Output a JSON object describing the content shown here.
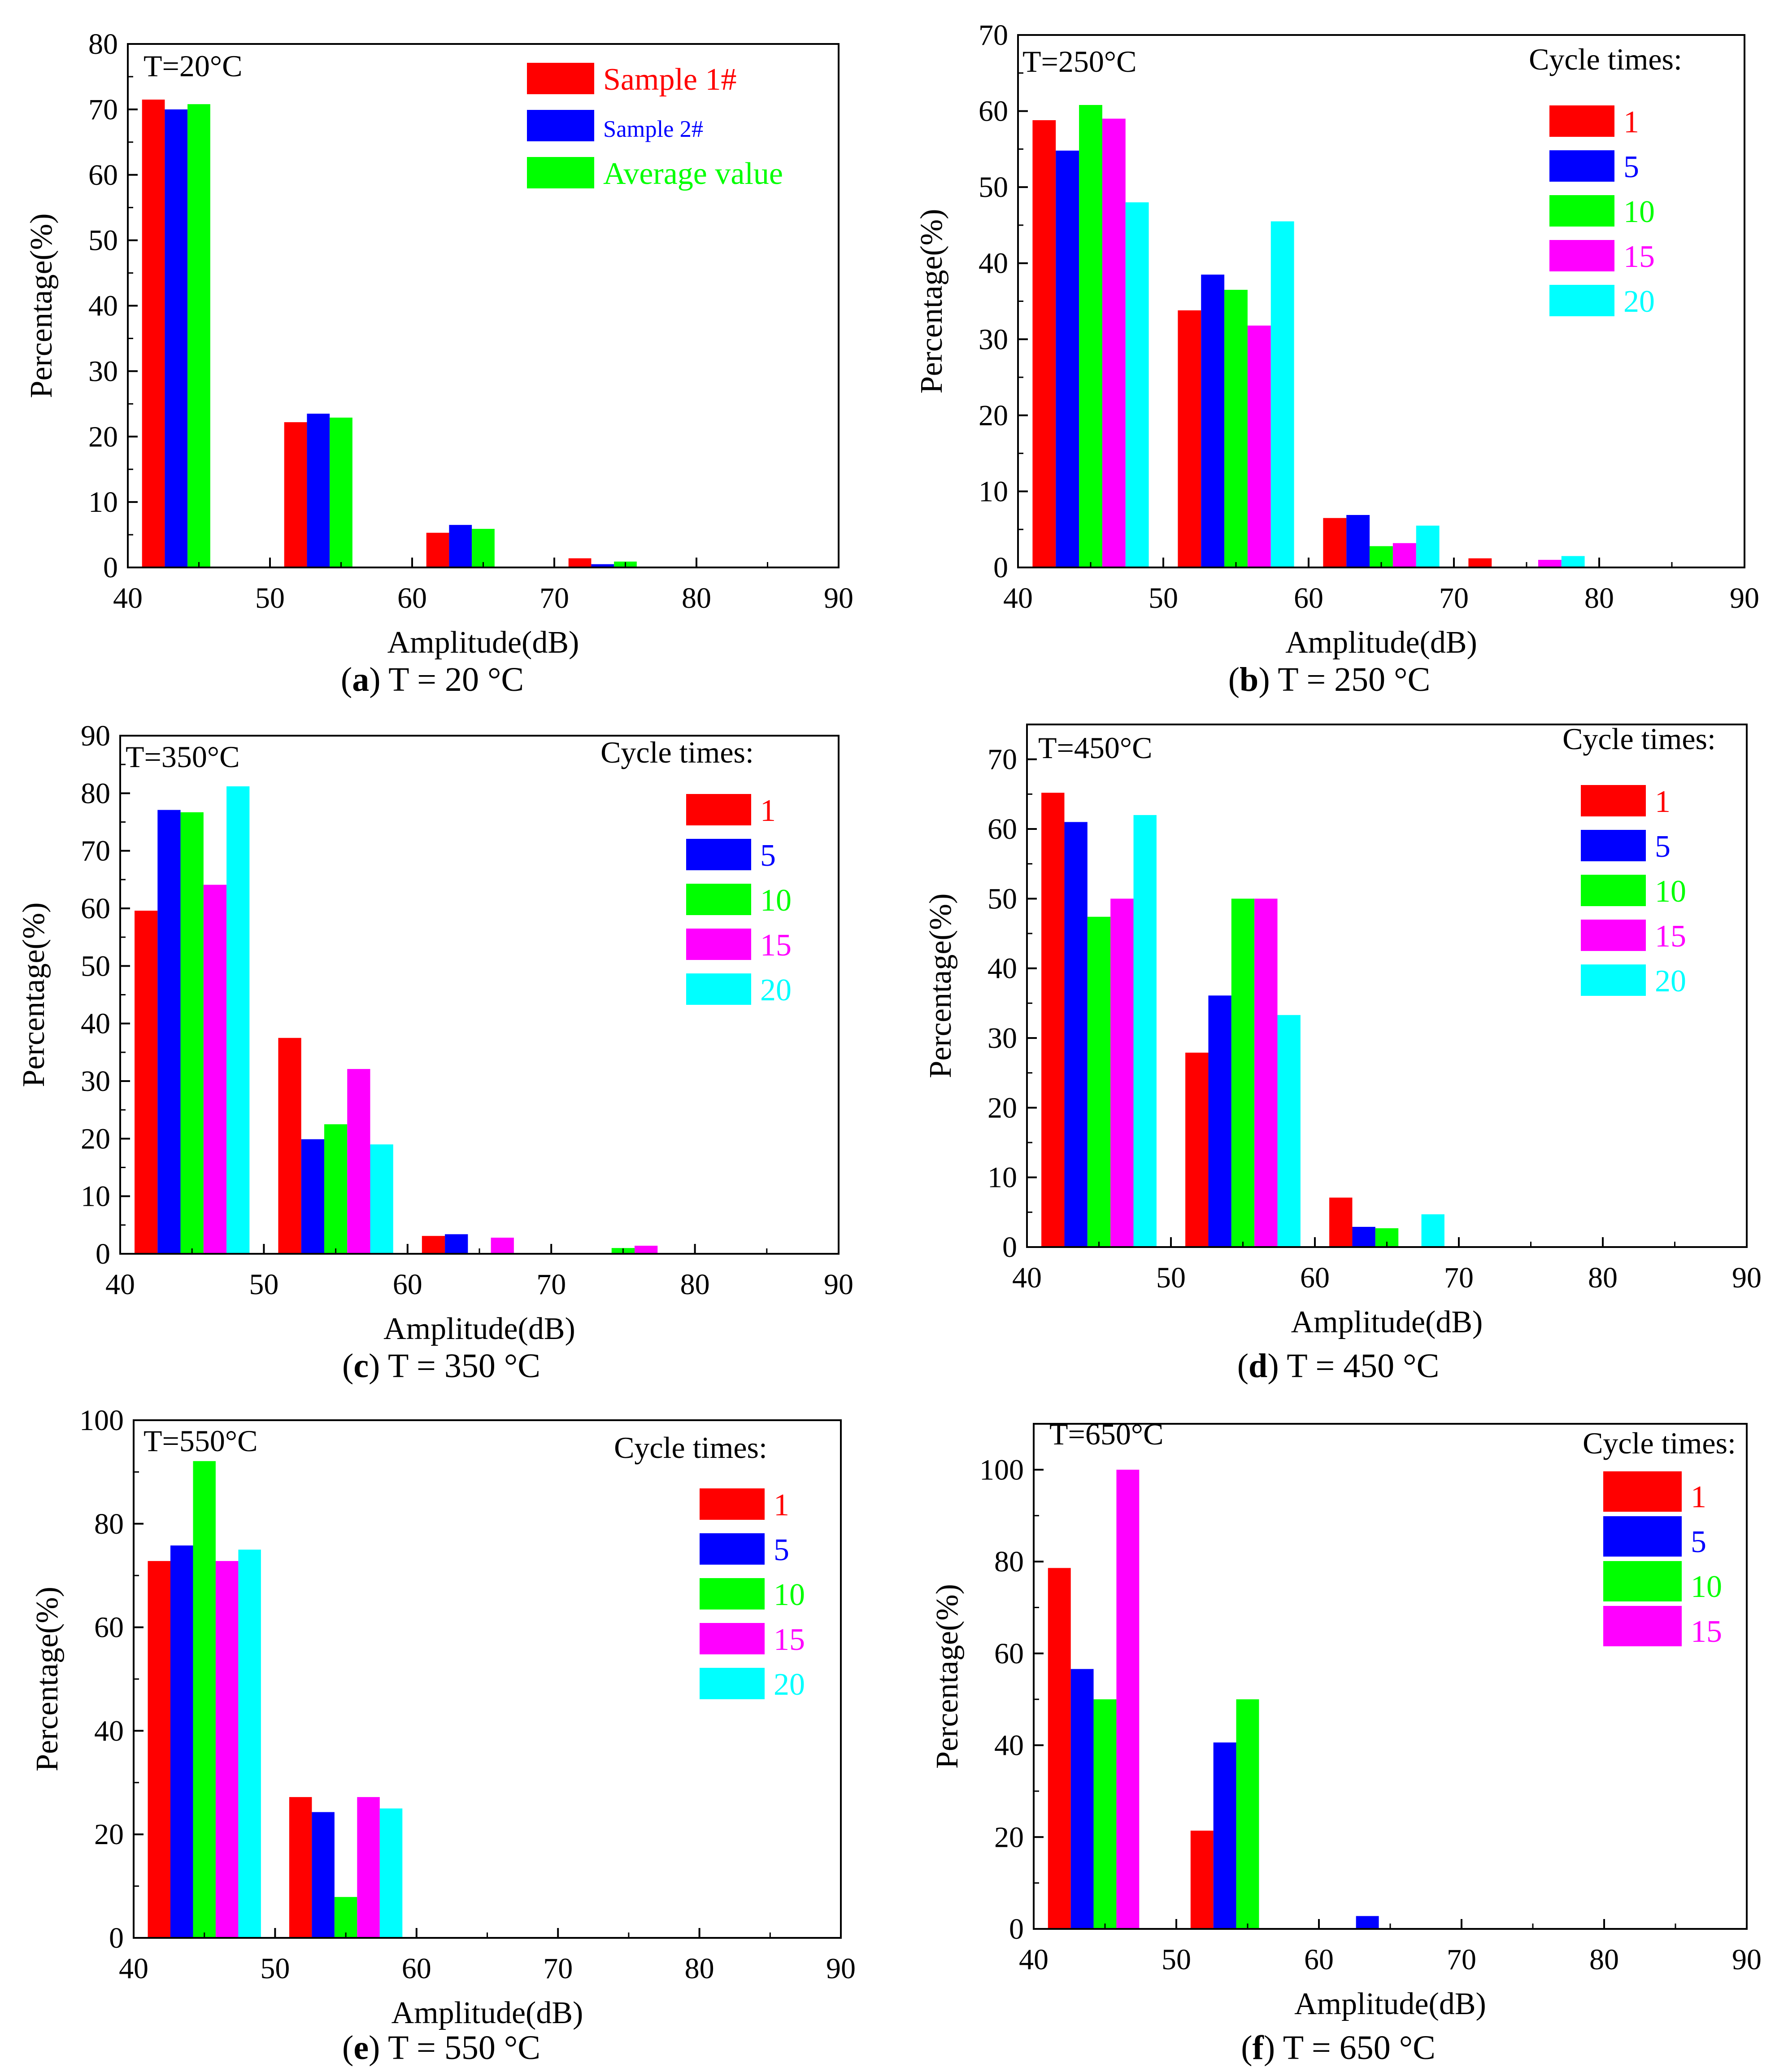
{
  "chart_data": [
    {
      "type": "bar",
      "temperature_label": "T=20°C",
      "caption_letter": "a",
      "caption_text": " T = 20 °C",
      "xlabel": "Amplitude(dB)",
      "ylabel": "Percentage(%)",
      "xlim": [
        40,
        90
      ],
      "ylim": [
        0,
        80
      ],
      "xticks": [
        40,
        50,
        60,
        70,
        80,
        90
      ],
      "yticks": [
        0,
        10,
        20,
        30,
        40,
        50,
        60,
        70,
        80
      ],
      "legend_title": "",
      "group_starts": [
        41,
        51,
        61,
        71
      ],
      "series": [
        {
          "name": "Sample 1#",
          "color": "#ff0000",
          "values": [
            71.5,
            22.2,
            5.3,
            1.4
          ]
        },
        {
          "name": "Sample 2#",
          "color": "#0000ff",
          "values": [
            70.0,
            23.5,
            6.5,
            0.5
          ]
        },
        {
          "name": "Average value",
          "color": "#00ff00",
          "values": [
            70.8,
            22.9,
            5.9,
            0.9
          ]
        }
      ]
    },
    {
      "type": "bar",
      "temperature_label": "T=250°C",
      "caption_letter": "b",
      "caption_text": " T = 250 °C",
      "xlabel": "Amplitude(dB)",
      "ylabel": "Percentage(%)",
      "xlim": [
        40,
        90
      ],
      "ylim": [
        0,
        70
      ],
      "xticks": [
        40,
        50,
        60,
        70,
        80,
        90
      ],
      "yticks": [
        0,
        10,
        20,
        30,
        40,
        50,
        60,
        70
      ],
      "legend_title": "Cycle times:",
      "group_starts": [
        41,
        51,
        61,
        71
      ],
      "series": [
        {
          "name": "1",
          "color": "#ff0000",
          "values": [
            58.8,
            33.8,
            6.5,
            1.2
          ]
        },
        {
          "name": "5",
          "color": "#0000ff",
          "values": [
            54.8,
            38.5,
            6.9,
            0
          ]
        },
        {
          "name": "10",
          "color": "#00ff00",
          "values": [
            60.8,
            36.5,
            2.8,
            0
          ]
        },
        {
          "name": "15",
          "color": "#ff00ff",
          "values": [
            59.0,
            31.8,
            3.2,
            1.0
          ]
        },
        {
          "name": "20",
          "color": "#00ffff",
          "values": [
            48.0,
            45.5,
            5.5,
            1.5
          ]
        }
      ]
    },
    {
      "type": "bar",
      "temperature_label": "T=350°C",
      "caption_letter": "c",
      "caption_text": " T = 350 °C",
      "xlabel": "Amplitude(dB)",
      "ylabel": "Percentage(%)",
      "xlim": [
        40,
        90
      ],
      "ylim": [
        0,
        90
      ],
      "xticks": [
        40,
        50,
        60,
        70,
        80,
        90
      ],
      "yticks": [
        0,
        10,
        20,
        30,
        40,
        50,
        60,
        70,
        80,
        90
      ],
      "legend_title": "Cycle times:",
      "group_starts": [
        41,
        51,
        61,
        71
      ],
      "series": [
        {
          "name": "1",
          "color": "#ff0000",
          "values": [
            59.6,
            37.5,
            3.1,
            0
          ]
        },
        {
          "name": "5",
          "color": "#0000ff",
          "values": [
            77.1,
            19.9,
            3.4,
            0
          ]
        },
        {
          "name": "10",
          "color": "#00ff00",
          "values": [
            76.7,
            22.5,
            0,
            1.0
          ]
        },
        {
          "name": "15",
          "color": "#ff00ff",
          "values": [
            64.1,
            32.1,
            2.8,
            1.4
          ]
        },
        {
          "name": "20",
          "color": "#00ffff",
          "values": [
            81.2,
            19.0,
            0,
            0
          ]
        }
      ]
    },
    {
      "type": "bar",
      "temperature_label": "T=450°C",
      "caption_letter": "d",
      "caption_text": " T = 450 °C",
      "xlabel": "Amplitude(dB)",
      "ylabel": "Percentage(%)",
      "xlim": [
        40,
        90
      ],
      "ylim": [
        0,
        75
      ],
      "xticks": [
        40,
        50,
        60,
        70,
        80,
        90
      ],
      "yticks": [
        0,
        10,
        20,
        30,
        40,
        50,
        60,
        70
      ],
      "legend_title": "Cycle times:",
      "group_starts": [
        41,
        51,
        61,
        71
      ],
      "series": [
        {
          "name": "1",
          "color": "#ff0000",
          "values": [
            65.2,
            27.9,
            7.1,
            0
          ]
        },
        {
          "name": "5",
          "color": "#0000ff",
          "values": [
            61.0,
            36.1,
            2.9,
            0
          ]
        },
        {
          "name": "10",
          "color": "#00ff00",
          "values": [
            47.4,
            50.0,
            2.7,
            0
          ]
        },
        {
          "name": "15",
          "color": "#ff00ff",
          "values": [
            50.0,
            50.0,
            0,
            0
          ]
        },
        {
          "name": "20",
          "color": "#00ffff",
          "values": [
            62.0,
            33.3,
            4.7,
            0
          ]
        }
      ]
    },
    {
      "type": "bar",
      "temperature_label": "T=550°C",
      "caption_letter": "e",
      "caption_text": " T = 550 °C",
      "xlabel": "Amplitude(dB)",
      "ylabel": "Percentage(%)",
      "xlim": [
        40,
        90
      ],
      "ylim": [
        0,
        100
      ],
      "xticks": [
        40,
        50,
        60,
        70,
        80,
        90
      ],
      "yticks": [
        0,
        20,
        40,
        60,
        80,
        100
      ],
      "legend_title": "Cycle times:",
      "group_starts": [
        41,
        51,
        61,
        71
      ],
      "series": [
        {
          "name": "1",
          "color": "#ff0000",
          "values": [
            72.8,
            27.2,
            0,
            0
          ]
        },
        {
          "name": "5",
          "color": "#0000ff",
          "values": [
            75.8,
            24.3,
            0,
            0
          ]
        },
        {
          "name": "10",
          "color": "#00ff00",
          "values": [
            92.1,
            7.9,
            0,
            0
          ]
        },
        {
          "name": "15",
          "color": "#ff00ff",
          "values": [
            72.8,
            27.2,
            0,
            0
          ]
        },
        {
          "name": "20",
          "color": "#00ffff",
          "values": [
            75.0,
            25.0,
            0,
            0
          ]
        }
      ]
    },
    {
      "type": "bar",
      "temperature_label": "T=650°C",
      "caption_letter": "f",
      "caption_text": " T = 650 °C",
      "xlabel": "Amplitude(dB)",
      "ylabel": "Percentage(%)",
      "xlim": [
        40,
        90
      ],
      "ylim": [
        0,
        110
      ],
      "xticks": [
        40,
        50,
        60,
        70,
        80,
        90
      ],
      "yticks": [
        0,
        20,
        40,
        60,
        80,
        100
      ],
      "legend_title": "Cycle times:",
      "group_starts": [
        41,
        51,
        61
      ],
      "series": [
        {
          "name": "1",
          "color": "#ff0000",
          "values": [
            78.6,
            21.4,
            0
          ]
        },
        {
          "name": "5",
          "color": "#0000ff",
          "values": [
            56.6,
            40.6,
            2.8
          ]
        },
        {
          "name": "10",
          "color": "#00ff00",
          "values": [
            50.0,
            50.0,
            0
          ]
        },
        {
          "name": "15",
          "color": "#ff00ff",
          "values": [
            100.0,
            0,
            0
          ]
        }
      ]
    }
  ]
}
